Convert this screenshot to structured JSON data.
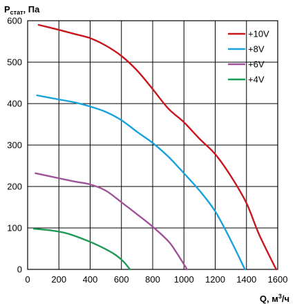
{
  "chart_data": {
    "type": "line",
    "ylabel_main": "P",
    "ylabel_sub": "стат",
    "ylabel_unit": ", Па",
    "xlabel_main": "Q, м",
    "xlabel_sup": "3",
    "xlabel_unit": "/ч",
    "xlim": [
      0,
      1600
    ],
    "ylim": [
      0,
      600
    ],
    "x_ticks": [
      "0",
      "200",
      "400",
      "600",
      "800",
      "1000",
      "1200",
      "1400",
      "1600"
    ],
    "y_ticks": [
      "0",
      "100",
      "200",
      "300",
      "400",
      "500",
      "600"
    ],
    "grid": true,
    "legend_position": "top-right",
    "series": [
      {
        "name": "+10V",
        "color": "#c8161d",
        "points": [
          [
            70,
            590
          ],
          [
            200,
            578
          ],
          [
            300,
            568
          ],
          [
            400,
            558
          ],
          [
            500,
            540
          ],
          [
            600,
            515
          ],
          [
            700,
            480
          ],
          [
            800,
            435
          ],
          [
            900,
            388
          ],
          [
            1000,
            355
          ],
          [
            1100,
            315
          ],
          [
            1200,
            278
          ],
          [
            1300,
            225
          ],
          [
            1400,
            160
          ],
          [
            1480,
            85
          ],
          [
            1590,
            0
          ]
        ]
      },
      {
        "name": "+8V",
        "color": "#19a1dc",
        "points": [
          [
            60,
            420
          ],
          [
            200,
            410
          ],
          [
            300,
            403
          ],
          [
            400,
            393
          ],
          [
            500,
            380
          ],
          [
            600,
            360
          ],
          [
            700,
            332
          ],
          [
            800,
            305
          ],
          [
            900,
            272
          ],
          [
            1000,
            232
          ],
          [
            1100,
            190
          ],
          [
            1200,
            140
          ],
          [
            1300,
            70
          ],
          [
            1390,
            0
          ]
        ]
      },
      {
        "name": "+6V",
        "color": "#a05299",
        "points": [
          [
            50,
            232
          ],
          [
            200,
            220
          ],
          [
            300,
            212
          ],
          [
            400,
            205
          ],
          [
            500,
            190
          ],
          [
            600,
            162
          ],
          [
            700,
            133
          ],
          [
            800,
            103
          ],
          [
            900,
            68
          ],
          [
            950,
            42
          ],
          [
            1020,
            0
          ]
        ]
      },
      {
        "name": "+4V",
        "color": "#1d9a56",
        "points": [
          [
            40,
            98
          ],
          [
            150,
            94
          ],
          [
            250,
            87
          ],
          [
            350,
            74
          ],
          [
            450,
            58
          ],
          [
            550,
            38
          ],
          [
            610,
            20
          ],
          [
            655,
            0
          ]
        ]
      }
    ]
  }
}
